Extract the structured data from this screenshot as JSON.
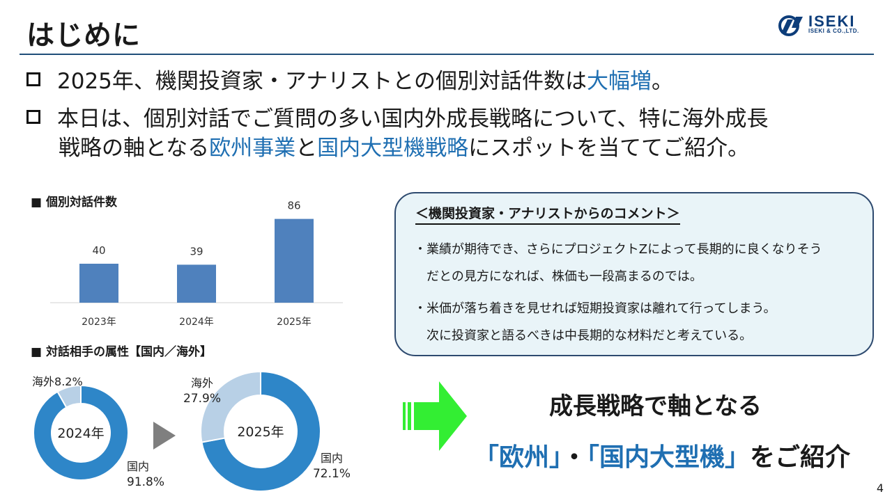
{
  "slide": {
    "title": "はじめに",
    "page_number": "4"
  },
  "logo": {
    "name": "ISEKI",
    "sub": "ISEKI & CO.,LTD."
  },
  "bullets": [
    {
      "pre": "2025年、機関投資家・アナリストとの個別対話件数は",
      "hl1": "大幅増",
      "post": "。"
    },
    {
      "line1": "本日は、個別対話でご質問の多い国内外成長戦略について、特に海外成長",
      "line2_pre": "戦略の軸となる",
      "hl1": "欧州事業",
      "mid": "と",
      "hl2": "国内大型機戦略",
      "post": "にスポットを当ててご紹介。"
    }
  ],
  "dialog_section": {
    "label": "■ 個別対話件数"
  },
  "attr_section": {
    "label": "■ 対話相手の属性【国内／海外】"
  },
  "chart_data": [
    {
      "type": "bar",
      "categories": [
        "2023年",
        "2024年",
        "2025年"
      ],
      "values": [
        40,
        39,
        86
      ],
      "title": "■ 個別対話件数",
      "color": "#4f81bd"
    },
    {
      "type": "pie",
      "center_label": "2024年",
      "slices": [
        {
          "name": "国内",
          "value": 91.8,
          "label": "91.8%",
          "color": "#2e86c8"
        },
        {
          "name": "海外",
          "value": 8.2,
          "label": "8.2%",
          "color": "#b8d0e6"
        }
      ]
    },
    {
      "type": "pie",
      "center_label": "2025年",
      "slices": [
        {
          "name": "国内",
          "value": 72.1,
          "label": "72.1%",
          "color": "#2e86c8"
        },
        {
          "name": "海外",
          "value": 27.9,
          "label": "27.9%",
          "color": "#b8d0e6"
        }
      ]
    }
  ],
  "comment_box": {
    "title": "＜機関投資家・アナリストからのコメント＞",
    "lines": [
      "・業績が期待でき、さらにプロジェクトZによって長期的に良くなりそう",
      "　だとの見方になれば、株価も一段高まるのでは。",
      "・米価が落ち着きを見せれば短期投資家は離れて行ってしまう。",
      "　次に投資家と語るべきは中長期的な材料だと考えている。"
    ]
  },
  "growth": {
    "line1": "成長戦略で軸となる",
    "hl1": "「欧州」",
    "sep": "・",
    "hl2": "「国内大型機」",
    "post": "をご紹介"
  },
  "colors": {
    "accent": "#1f6fb2",
    "rule": "#1f4e79",
    "bar": "#4f81bd",
    "donut_domestic": "#2e86c8",
    "donut_overseas": "#b8d0e6",
    "arrow": "#33ee33",
    "box_bg": "#e9f4f8",
    "box_border": "#2e4a6f"
  }
}
